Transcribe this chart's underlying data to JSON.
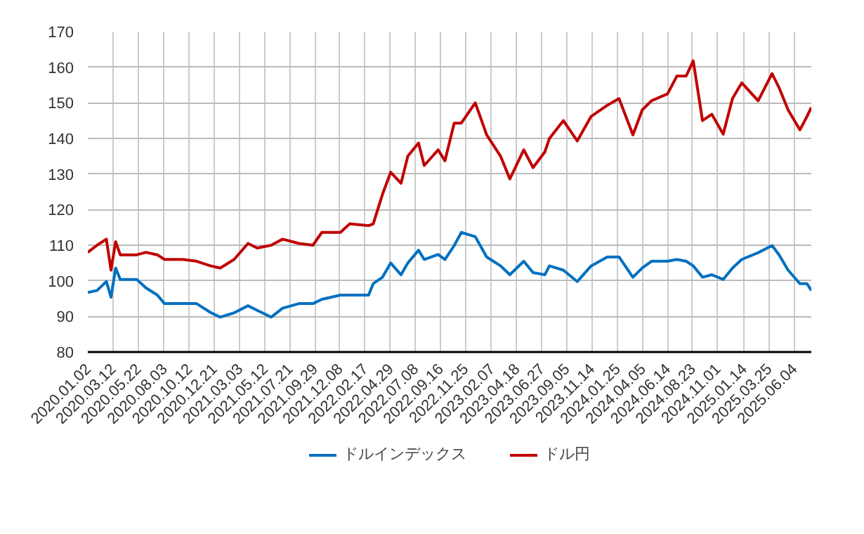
{
  "chart_data": {
    "type": "line",
    "x": [
      "2020-01-02",
      "2020-01-28",
      "2020-02-23",
      "2020-03-07",
      "2020-03-20",
      "2020-04-02",
      "2020-05-18",
      "2020-06-13",
      "2020-07-15",
      "2020-08-04",
      "2020-09-24",
      "2020-11-02",
      "2020-12-11",
      "2021-01-07",
      "2021-02-15",
      "2021-03-26",
      "2021-04-21",
      "2021-05-30",
      "2021-07-01",
      "2021-08-16",
      "2021-09-24",
      "2021-10-19",
      "2021-12-10",
      "2022-01-05",
      "2022-02-27",
      "2022-03-12",
      "2022-04-07",
      "2022-04-30",
      "2022-05-29",
      "2022-06-17",
      "2022-07-17",
      "2022-08-02",
      "2022-09-10",
      "2022-09-29",
      "2022-10-25",
      "2022-11-14",
      "2022-12-23",
      "2023-01-24",
      "2023-03-04",
      "2023-03-30",
      "2023-05-08",
      "2023-06-03",
      "2023-07-06",
      "2023-07-19",
      "2023-08-27",
      "2023-10-05",
      "2023-11-13",
      "2023-12-28",
      "2024-01-30",
      "2024-03-09",
      "2024-04-04",
      "2024-04-30",
      "2024-06-14",
      "2024-07-10",
      "2024-08-05",
      "2024-08-25",
      "2024-09-20",
      "2024-10-16",
      "2024-11-17",
      "2024-12-13",
      "2025-01-08",
      "2025-02-23",
      "2025-04-03",
      "2025-04-22",
      "2025-05-18",
      "2025-06-20",
      "2025-07-10",
      "2025-07-22"
    ],
    "series": [
      {
        "name": "ドルインデックス",
        "color": "#0070c0",
        "values": [
          96.7,
          97.3,
          99.8,
          95.4,
          103.6,
          100.4,
          100.4,
          98,
          96,
          93.6,
          93.6,
          93.6,
          91.1,
          89.8,
          91,
          93,
          91.7,
          89.8,
          92.3,
          93.6,
          93.6,
          94.8,
          96,
          96,
          96,
          99.2,
          101,
          105,
          101.7,
          105,
          108.6,
          106,
          107.4,
          106,
          109.9,
          113.6,
          112.4,
          106.7,
          104.2,
          101.7,
          105.5,
          102.3,
          101.7,
          104.2,
          103,
          99.8,
          104.2,
          106.7,
          106.7,
          101,
          103.6,
          105.5,
          105.5,
          106,
          105.5,
          104.2,
          101,
          101.7,
          100.4,
          103.6,
          106,
          107.9,
          109.9,
          107.4,
          103,
          99.2,
          99.2,
          97.3
        ]
      },
      {
        "name": "ドル円",
        "color": "#c00000",
        "values": [
          108,
          110,
          111.7,
          103,
          111,
          107.3,
          107.3,
          108,
          107.3,
          106,
          106,
          105.5,
          104.2,
          103.6,
          106,
          110.5,
          109.2,
          110,
          111.7,
          110.5,
          110,
          113.6,
          113.6,
          116,
          115.5,
          116,
          124.3,
          130.5,
          127.4,
          135,
          138.7,
          132.4,
          136.8,
          133.7,
          144.3,
          144.3,
          150,
          141,
          135,
          128.6,
          136.8,
          131.8,
          136.2,
          140,
          145,
          139.3,
          146.2,
          149.3,
          151.2,
          141,
          148,
          150.6,
          152.5,
          157.5,
          157.5,
          161.8,
          145,
          146.8,
          141.2,
          151.2,
          155.6,
          150.6,
          158.2,
          154.4,
          148,
          142.4,
          146.2,
          148.7
        ]
      }
    ],
    "xlim": [
      "2020-01-02",
      "2025-07-22"
    ],
    "xticks": [
      {
        "value": "2020-01-02",
        "label": "2020.01.02"
      },
      {
        "value": "2020-03-12",
        "label": "2020.03.12"
      },
      {
        "value": "2020-05-22",
        "label": "2020.05.22"
      },
      {
        "value": "2020-08-03",
        "label": "2020.08.03"
      },
      {
        "value": "2020-10-12",
        "label": "2020.10.12"
      },
      {
        "value": "2020-12-21",
        "label": "2020.12.21"
      },
      {
        "value": "2021-03-03",
        "label": "2021.03.03"
      },
      {
        "value": "2021-05-12",
        "label": "2021.05.12"
      },
      {
        "value": "2021-07-21",
        "label": "2021.07.21"
      },
      {
        "value": "2021-09-29",
        "label": "2021.09.29"
      },
      {
        "value": "2021-12-08",
        "label": "2021.12.08"
      },
      {
        "value": "2022-02-17",
        "label": "2022.02.17"
      },
      {
        "value": "2022-04-29",
        "label": "2022.04.29"
      },
      {
        "value": "2022-07-08",
        "label": "2022.07.08"
      },
      {
        "value": "2022-09-16",
        "label": "2022.09.16"
      },
      {
        "value": "2022-11-25",
        "label": "2022.11.25"
      },
      {
        "value": "2023-02-07",
        "label": "2023.02.07"
      },
      {
        "value": "2023-04-18",
        "label": "2023.04.18"
      },
      {
        "value": "2023-06-27",
        "label": "2023.06.27"
      },
      {
        "value": "2023-09-05",
        "label": "2023.09.05"
      },
      {
        "value": "2023-11-14",
        "label": "2023.11.14"
      },
      {
        "value": "2024-01-25",
        "label": "2024.01.25"
      },
      {
        "value": "2024-04-05",
        "label": "2024.04.05"
      },
      {
        "value": "2024-06-14",
        "label": "2024.06.14"
      },
      {
        "value": "2024-08-23",
        "label": "2024.08.23"
      },
      {
        "value": "2024-11-01",
        "label": "2024.11.01"
      },
      {
        "value": "2025-01-14",
        "label": "2025.01.14"
      },
      {
        "value": "2025-03-25",
        "label": "2025.03.25"
      },
      {
        "value": "2025-06-04",
        "label": "2025.06.04"
      }
    ],
    "ylim": [
      80,
      170
    ],
    "yticks": [
      80,
      90,
      100,
      110,
      120,
      130,
      140,
      150,
      160,
      170
    ],
    "grid": true,
    "legend": "bottom"
  }
}
